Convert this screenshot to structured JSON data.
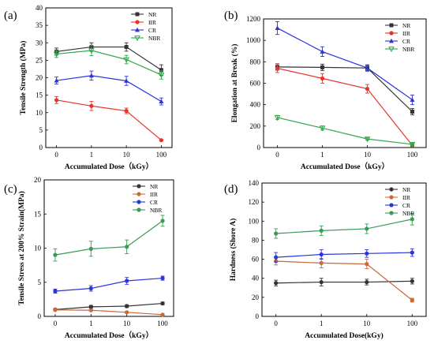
{
  "chart_data": [
    {
      "type": "line",
      "panel_label": "(a)",
      "title": "",
      "xlabel": "Accumulated Dose（kGy）",
      "ylabel": "Tensile Strength (MPa)",
      "categories": [
        "0",
        "1",
        "10",
        "100"
      ],
      "ylim": [
        0,
        40
      ],
      "yticks": [
        "0",
        "5",
        "10",
        "15",
        "20",
        "25",
        "30",
        "35",
        "40"
      ],
      "legend_position": "top-right",
      "series": [
        {
          "name": "NR",
          "color": "#333333",
          "marker": "square",
          "values": [
            27.5,
            28.8,
            28.8,
            22.2
          ],
          "errors": [
            1.0,
            1.2,
            1.2,
            1.5
          ]
        },
        {
          "name": "IIR",
          "color": "#e8332b",
          "marker": "circle",
          "values": [
            13.6,
            11.9,
            10.5,
            2.1
          ],
          "errors": [
            1.0,
            1.3,
            0.8,
            0.2
          ]
        },
        {
          "name": "CR",
          "color": "#2b35d8",
          "marker": "triangle",
          "values": [
            19.2,
            20.6,
            19.1,
            13.2
          ],
          "errors": [
            1.0,
            1.3,
            1.3,
            1.0
          ]
        },
        {
          "name": "NBR",
          "color": "#2ea84a",
          "marker": "triangle-down",
          "values": [
            26.8,
            27.8,
            25.2,
            20.8
          ],
          "errors": [
            1.0,
            1.5,
            1.2,
            1.2
          ]
        }
      ]
    },
    {
      "type": "line",
      "panel_label": "(b)",
      "title": "",
      "xlabel": "Accumulated Dose（kGy）",
      "ylabel": "Elongation at Break (%)",
      "categories": [
        "0",
        "1",
        "10",
        "100"
      ],
      "ylim": [
        0,
        1200
      ],
      "yticks": [
        "0",
        "200",
        "400",
        "600",
        "800",
        "1000",
        "1200"
      ],
      "legend_position": "top-right",
      "series": [
        {
          "name": "NR",
          "color": "#333333",
          "marker": "square",
          "values": [
            752,
            748,
            742,
            335
          ],
          "errors": [
            30,
            30,
            25,
            30
          ]
        },
        {
          "name": "IIR",
          "color": "#e8332b",
          "marker": "circle",
          "values": [
            740,
            645,
            548,
            20
          ],
          "errors": [
            40,
            45,
            40,
            10
          ]
        },
        {
          "name": "CR",
          "color": "#2b35d8",
          "marker": "triangle",
          "values": [
            1115,
            895,
            742,
            445
          ],
          "errors": [
            60,
            45,
            30,
            45
          ]
        },
        {
          "name": "NBR",
          "color": "#2ea84a",
          "marker": "triangle-down",
          "values": [
            280,
            182,
            80,
            30
          ],
          "errors": [
            20,
            20,
            10,
            10
          ]
        }
      ]
    },
    {
      "type": "line",
      "panel_label": "(c)",
      "title": "",
      "xlabel": "Accumulated Dose（kGy）",
      "ylabel": "Tensile Stress at 200% Strain(MPa)",
      "categories": [
        "0",
        "1",
        "10",
        "100"
      ],
      "ylim": [
        0,
        20
      ],
      "yticks": [
        "0",
        "5",
        "10",
        "15",
        "20"
      ],
      "legend_position": "top-right",
      "series": [
        {
          "name": "NR",
          "color": "#333333",
          "marker": "circle",
          "values": [
            1.0,
            1.4,
            1.5,
            1.9
          ],
          "errors": [
            0.1,
            0.2,
            0.2,
            0.2
          ]
        },
        {
          "name": "IIR",
          "color": "#c8693a",
          "marker": "circle",
          "values": [
            0.95,
            0.9,
            0.6,
            0.25
          ],
          "errors": [
            0.1,
            0.1,
            0.1,
            0.1
          ]
        },
        {
          "name": "CR",
          "color": "#2b35d8",
          "marker": "circle",
          "values": [
            3.7,
            4.1,
            5.2,
            5.6
          ],
          "errors": [
            0.3,
            0.4,
            0.5,
            0.3
          ]
        },
        {
          "name": "NBR",
          "color": "#3a9b57",
          "marker": "circle",
          "values": [
            9.0,
            9.9,
            10.2,
            14.0
          ],
          "errors": [
            0.9,
            1.1,
            1.0,
            0.8
          ]
        }
      ]
    },
    {
      "type": "line",
      "panel_label": "(d)",
      "title": "",
      "xlabel": "Accumulated Dose(kGy)",
      "ylabel": "Hardness (Shore A)",
      "categories": [
        "0",
        "1",
        "10",
        "100"
      ],
      "ylim": [
        0,
        140
      ],
      "yticks": [
        "0",
        "20",
        "40",
        "60",
        "80",
        "100",
        "120",
        "140"
      ],
      "legend_position": "top-right",
      "series": [
        {
          "name": "NR",
          "color": "#333333",
          "marker": "circle",
          "values": [
            35,
            36,
            36,
            37
          ],
          "errors": [
            3,
            4,
            3,
            3
          ]
        },
        {
          "name": "IIR",
          "color": "#c8693a",
          "marker": "circle",
          "values": [
            58,
            56,
            55,
            17
          ],
          "errors": [
            4,
            5,
            5,
            2
          ]
        },
        {
          "name": "CR",
          "color": "#2b35d8",
          "marker": "circle",
          "values": [
            62,
            65,
            66,
            67
          ],
          "errors": [
            5,
            5,
            4,
            4
          ]
        },
        {
          "name": "NBR",
          "color": "#3a9b57",
          "marker": "circle",
          "values": [
            87,
            90,
            92,
            102
          ],
          "errors": [
            5,
            5,
            5,
            6
          ]
        }
      ]
    }
  ]
}
